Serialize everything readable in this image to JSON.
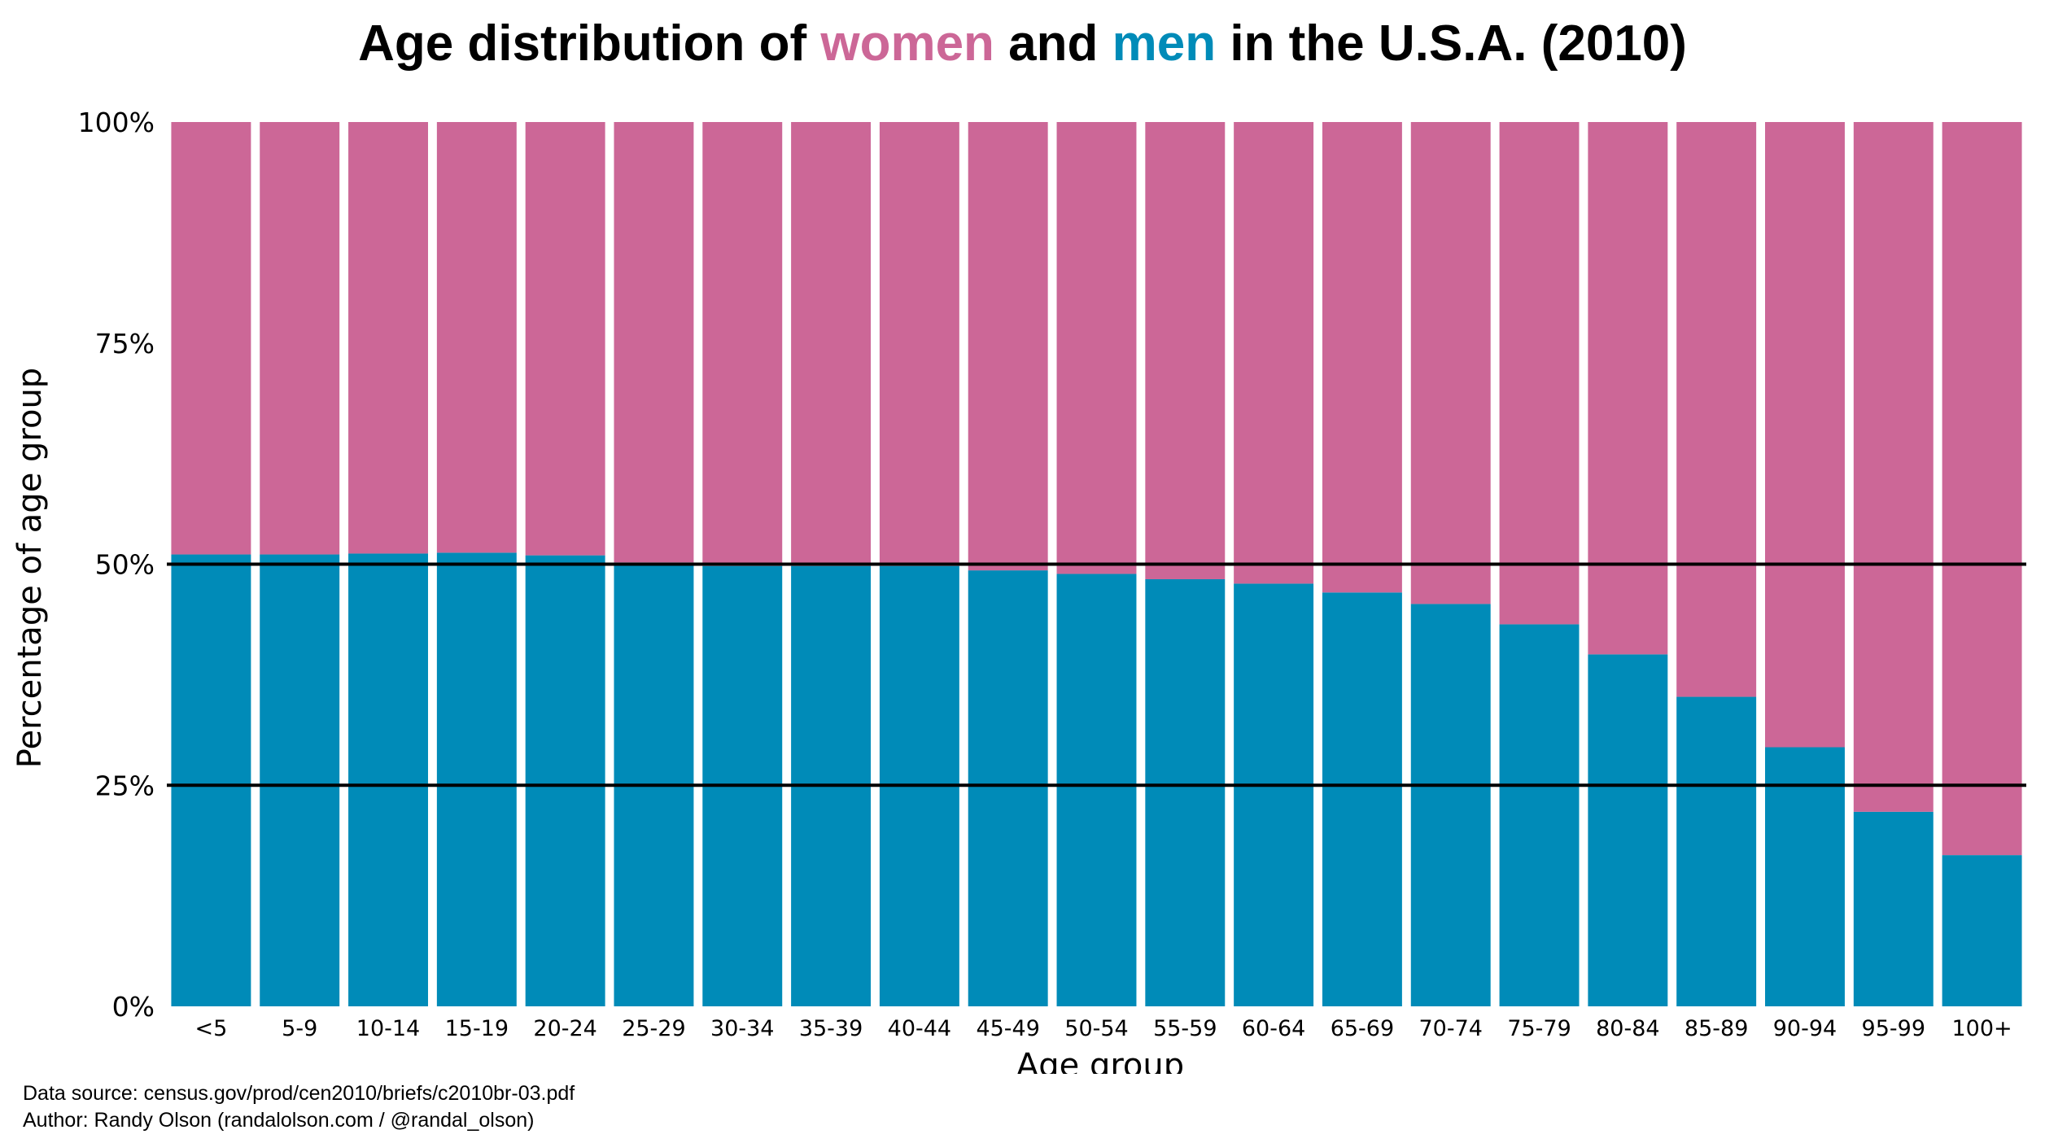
{
  "title": {
    "prefix": "Age distribution of ",
    "women_word": "women",
    "middle": " and ",
    "men_word": "men",
    "suffix": " in the U.S.A. (2010)"
  },
  "colors": {
    "women": "#CC6797",
    "men": "#008BB8",
    "reference_line": "#000000",
    "background": "#ffffff"
  },
  "footer": {
    "source": "Data source: census.gov/prod/cen2010/briefs/c2010br-03.pdf",
    "author": "Author: Randy Olson (randalolson.com / @randal_olson)"
  },
  "chart_data": {
    "type": "bar",
    "stacked": true,
    "xlabel": "Age group",
    "ylabel": "Percentage of age group",
    "ylim": [
      0,
      100
    ],
    "yticks": [
      0,
      25,
      50,
      75,
      100
    ],
    "ytick_labels": [
      "0%",
      "25%",
      "50%",
      "75%",
      "100%"
    ],
    "reference_lines": [
      25,
      50
    ],
    "grid": false,
    "categories": [
      "<5",
      "5-9",
      "10-14",
      "15-19",
      "20-24",
      "25-29",
      "30-34",
      "35-39",
      "40-44",
      "45-49",
      "50-54",
      "55-59",
      "60-64",
      "65-69",
      "70-74",
      "75-79",
      "80-84",
      "85-89",
      "90-94",
      "95-99",
      "100+"
    ],
    "series": [
      {
        "name": "men",
        "values": [
          51.1,
          51.1,
          51.2,
          51.3,
          51.0,
          50.2,
          49.8,
          49.8,
          49.8,
          49.3,
          48.9,
          48.3,
          47.8,
          46.8,
          45.5,
          43.2,
          39.8,
          35.0,
          29.3,
          22.0,
          17.1
        ]
      },
      {
        "name": "women",
        "values": [
          48.9,
          48.9,
          48.8,
          48.7,
          49.0,
          49.8,
          50.2,
          50.2,
          50.2,
          50.7,
          51.1,
          51.7,
          52.2,
          53.2,
          54.5,
          56.8,
          60.2,
          65.0,
          70.7,
          78.0,
          82.9
        ]
      }
    ]
  }
}
